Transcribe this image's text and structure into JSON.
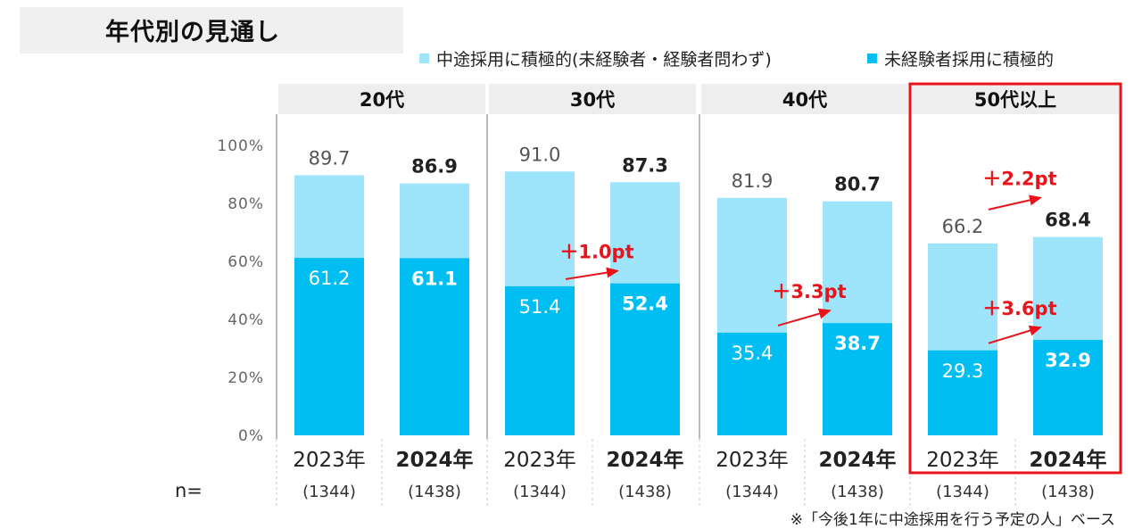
{
  "title": "年代別の見通し",
  "legend": [
    {
      "label": "中途採用に積極的(未経験者・経験者問わず)",
      "color": "#9ee5fb"
    },
    {
      "label": "未経験者採用に積極的",
      "color": "#00bdf2"
    }
  ],
  "note": "※「今後1年に中途採用を行う予定の人」ベース",
  "n_label": "n=",
  "colors": {
    "light": "#9ee5fb",
    "dark": "#00bdf2",
    "accent": "#e8141b",
    "header_bg": "#eeeeee"
  },
  "chart_data": {
    "type": "bar",
    "stacked_overlay": true,
    "ylim": [
      0,
      100
    ],
    "yticks": [
      "0%",
      "20%",
      "40%",
      "60%",
      "80%",
      "100%"
    ],
    "series": [
      {
        "name": "中途採用に積極的(未経験者・経験者問わず)",
        "key": "total"
      },
      {
        "name": "未経験者採用に積極的",
        "key": "inexp"
      }
    ],
    "groups": [
      {
        "label": "20代",
        "highlight": false,
        "bars": [
          {
            "year": "2023年",
            "n": "(1344)",
            "total": 89.7,
            "inexp": 61.2,
            "bold": false
          },
          {
            "year": "2024年",
            "n": "(1438)",
            "total": 86.9,
            "inexp": 61.1,
            "bold": true
          }
        ],
        "annotations": []
      },
      {
        "label": "30代",
        "highlight": false,
        "bars": [
          {
            "year": "2023年",
            "n": "(1344)",
            "total": 91.0,
            "inexp": 51.4,
            "bold": false
          },
          {
            "year": "2024年",
            "n": "(1438)",
            "total": 87.3,
            "inexp": 52.4,
            "bold": true
          }
        ],
        "annotations": [
          {
            "text": "＋1.0pt",
            "series": "inexp"
          }
        ]
      },
      {
        "label": "40代",
        "highlight": false,
        "bars": [
          {
            "year": "2023年",
            "n": "(1344)",
            "total": 81.9,
            "inexp": 35.4,
            "bold": false
          },
          {
            "year": "2024年",
            "n": "(1438)",
            "total": 80.7,
            "inexp": 38.7,
            "bold": true
          }
        ],
        "annotations": [
          {
            "text": "＋3.3pt",
            "series": "inexp"
          }
        ]
      },
      {
        "label": "50代以上",
        "highlight": true,
        "bars": [
          {
            "year": "2023年",
            "n": "(1344)",
            "total": 66.2,
            "inexp": 29.3,
            "bold": false
          },
          {
            "year": "2024年",
            "n": "(1438)",
            "total": 68.4,
            "inexp": 32.9,
            "bold": true
          }
        ],
        "annotations": [
          {
            "text": "＋2.2pt",
            "series": "total"
          },
          {
            "text": "＋3.6pt",
            "series": "inexp"
          }
        ]
      }
    ]
  }
}
